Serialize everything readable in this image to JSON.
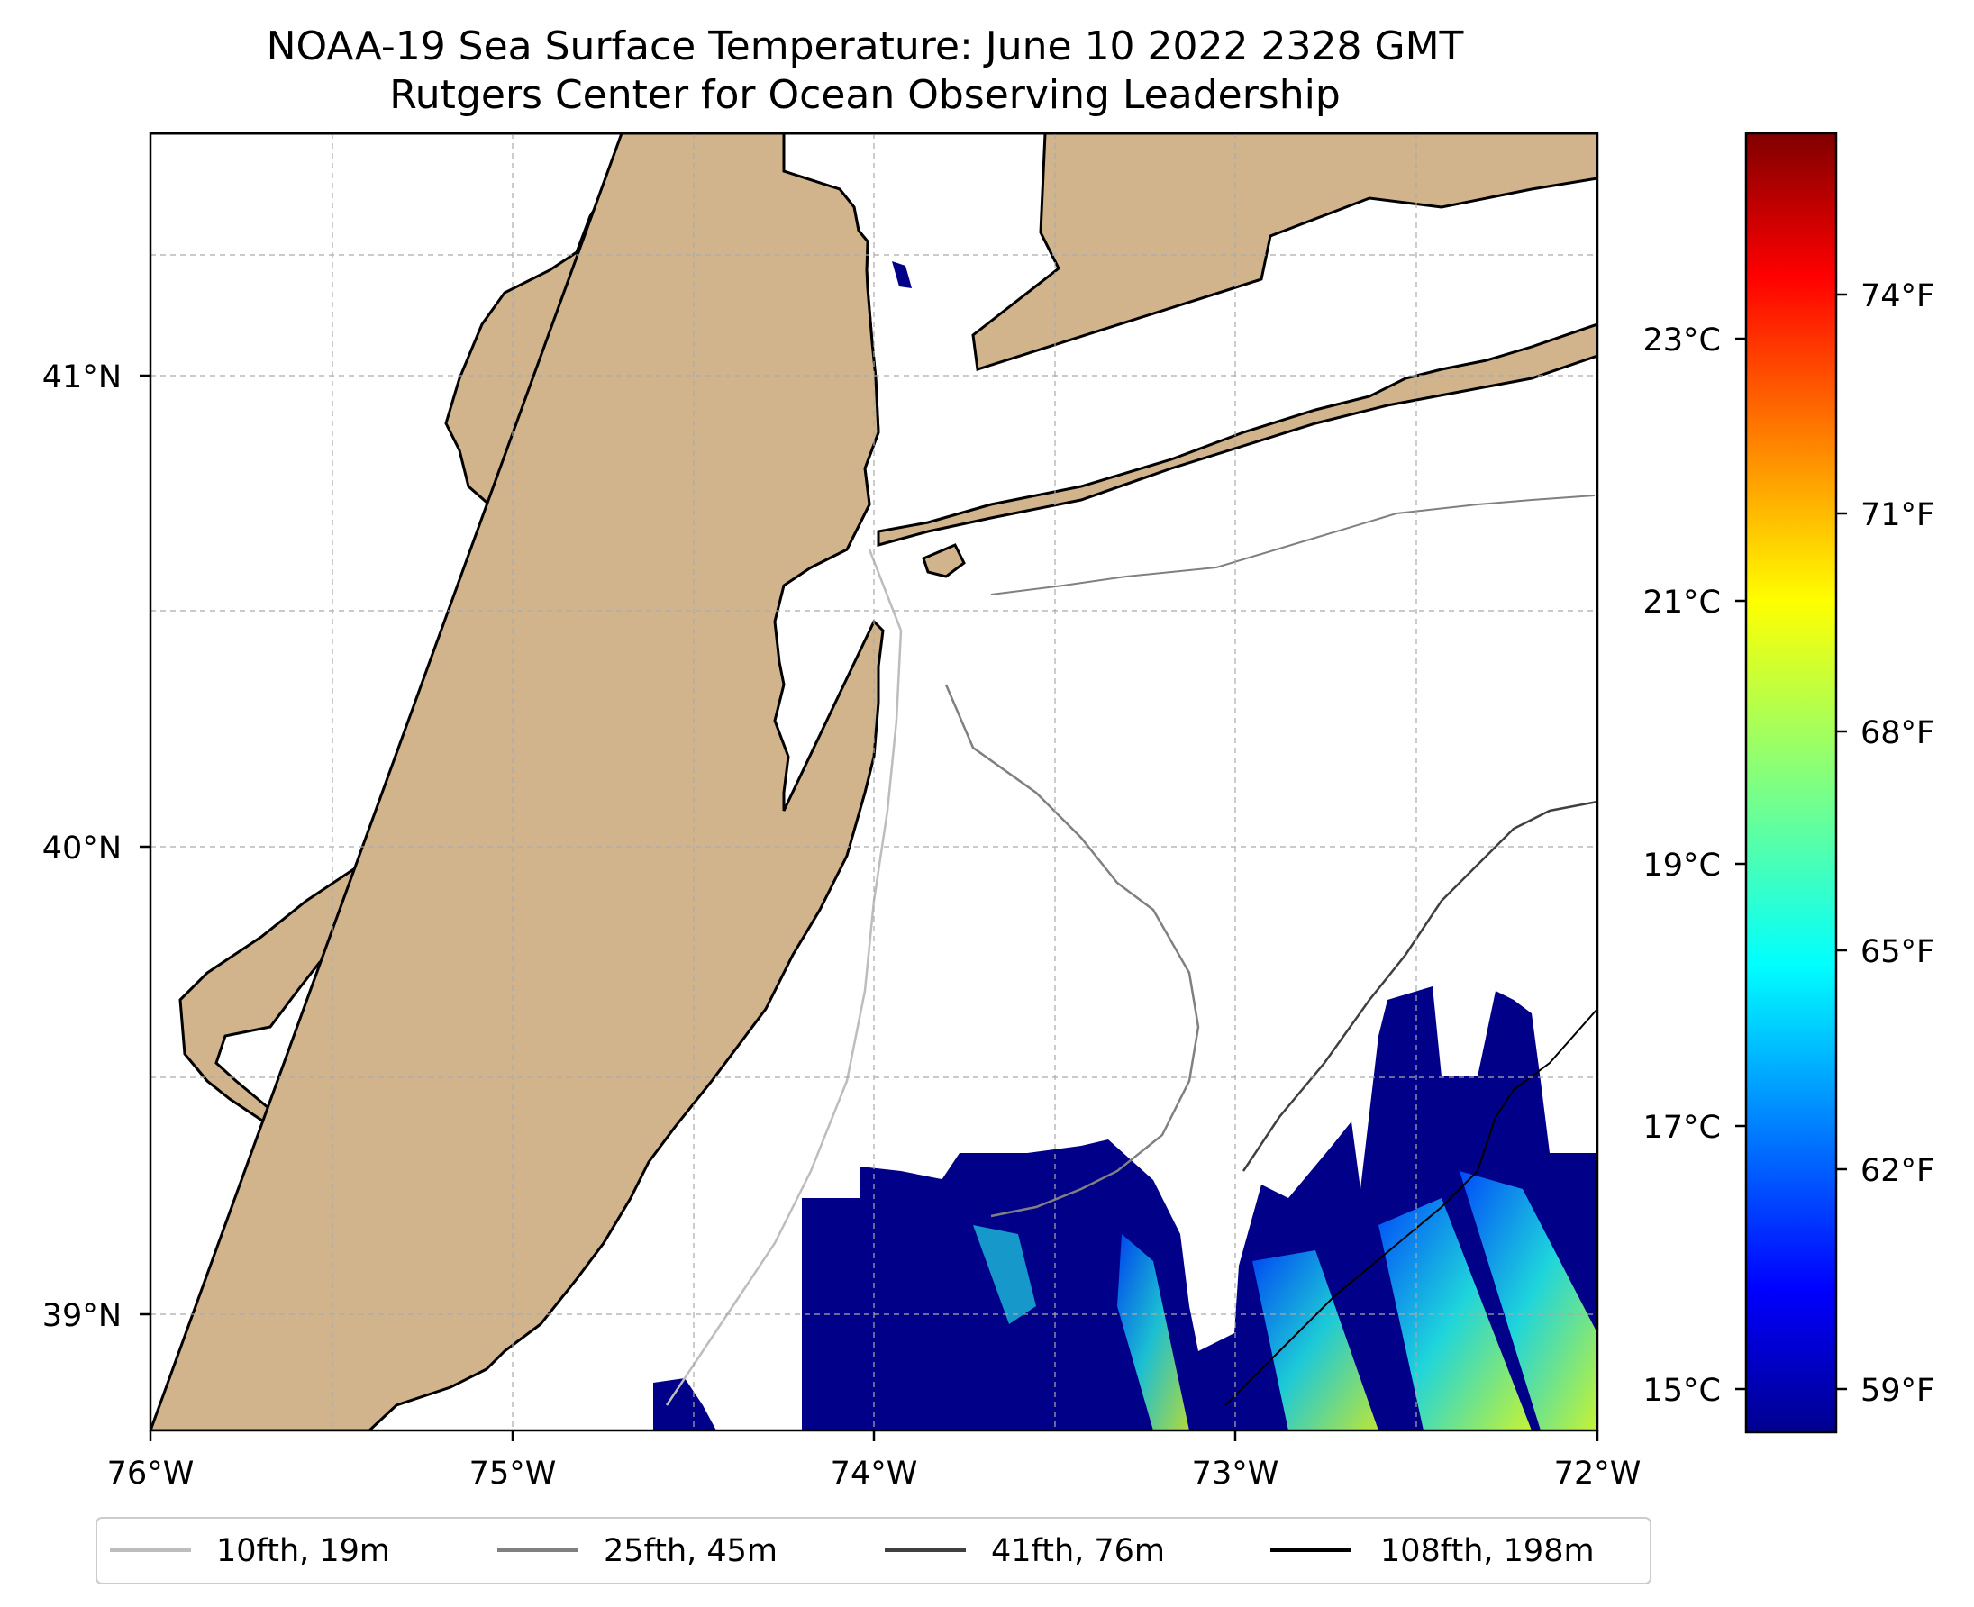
{
  "title": {
    "line1": "NOAA-19 Sea Surface Temperature: June 10 2022 2328 GMT",
    "line2": "Rutgers Center for Ocean Observing Leadership"
  },
  "map": {
    "lon_range": [
      -76,
      -72
    ],
    "lat_range": [
      38.75,
      41.5
    ],
    "x_ticks": [
      "76°W",
      "75°W",
      "74°W",
      "73°W",
      "72°W"
    ],
    "y_ticks": [
      "39°N",
      "40°N",
      "41°N"
    ],
    "land_color": "#d2b48c",
    "gridlines": true
  },
  "colorbar": {
    "colormap": "jet",
    "celsius_ticks": [
      "15°C",
      "17°C",
      "19°C",
      "21°C",
      "23°C"
    ],
    "fahrenheit_ticks": [
      "59°F",
      "62°F",
      "65°F",
      "68°F",
      "71°F",
      "74°F"
    ],
    "range_c": [
      14.8,
      24.7
    ]
  },
  "legend": {
    "items": [
      {
        "label": "10fth, 19m",
        "color": "#bdbdbd"
      },
      {
        "label": "25fth, 45m",
        "color": "#808080"
      },
      {
        "label": "41fth, 76m",
        "color": "#404040"
      },
      {
        "label": "108fth, 198m",
        "color": "#000000"
      }
    ]
  }
}
